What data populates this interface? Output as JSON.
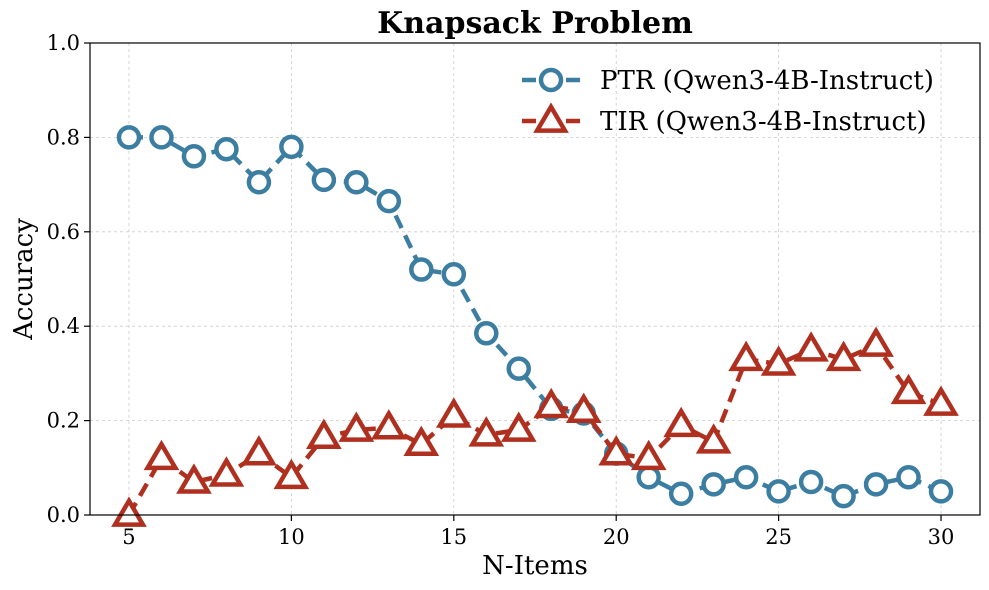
{
  "chart_data": {
    "type": "line",
    "title": "Knapsack Problem",
    "xlabel": "N-Items",
    "ylabel": "Accuracy",
    "xlim": [
      3.8,
      31.2
    ],
    "ylim": [
      0.0,
      1.0
    ],
    "xticks": [
      5,
      10,
      15,
      20,
      25,
      30
    ],
    "yticks": [
      0.0,
      0.2,
      0.4,
      0.6,
      0.8,
      1.0
    ],
    "xtick_labels": [
      "5",
      "10",
      "15",
      "20",
      "25",
      "30"
    ],
    "ytick_labels": [
      "0.0",
      "0.2",
      "0.4",
      "0.6",
      "0.8",
      "1.0"
    ],
    "grid": true,
    "legend_position": "top-right",
    "x": [
      5,
      6,
      7,
      8,
      9,
      10,
      11,
      12,
      13,
      14,
      15,
      16,
      17,
      18,
      19,
      20,
      21,
      22,
      23,
      24,
      25,
      26,
      27,
      28,
      29,
      30
    ],
    "series": [
      {
        "name": "PTR (Qwen3-4B-Instruct)",
        "color": "#3b7ea1",
        "marker": "circle",
        "values": [
          0.8,
          0.8,
          0.76,
          0.775,
          0.705,
          0.78,
          0.71,
          0.705,
          0.665,
          0.52,
          0.51,
          0.385,
          0.31,
          0.225,
          0.215,
          0.13,
          0.08,
          0.045,
          0.065,
          0.08,
          0.05,
          0.07,
          0.04,
          0.065,
          0.08,
          0.05
        ]
      },
      {
        "name": "TIR (Qwen3-4B-Instruct)",
        "color": "#b03020",
        "marker": "triangle",
        "values": [
          0.0,
          0.12,
          0.07,
          0.085,
          0.13,
          0.08,
          0.165,
          0.18,
          0.185,
          0.15,
          0.21,
          0.17,
          0.18,
          0.23,
          0.22,
          0.13,
          0.12,
          0.19,
          0.155,
          0.33,
          0.32,
          0.35,
          0.33,
          0.36,
          0.26,
          0.235
        ]
      }
    ]
  }
}
